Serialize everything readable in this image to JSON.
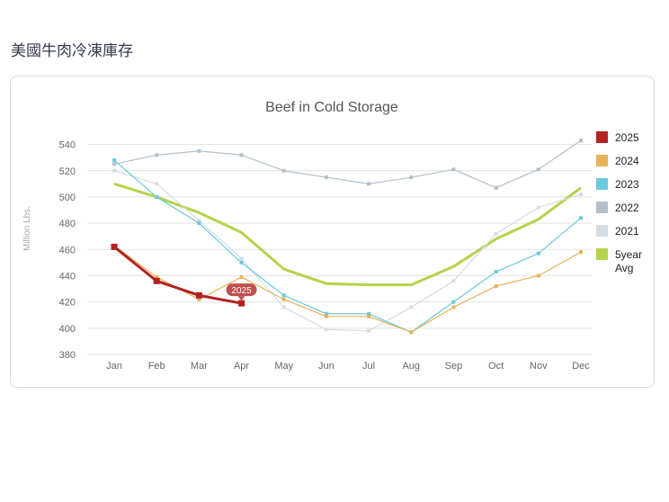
{
  "page": {
    "heading": "美國牛肉冷凍庫存"
  },
  "chart_data": {
    "type": "line",
    "title": "Beef in Cold Storage",
    "ylabel": "Million Lbs.",
    "xlabel": "",
    "ylim": [
      380,
      550
    ],
    "yticks": [
      380,
      400,
      420,
      440,
      460,
      480,
      500,
      520,
      540
    ],
    "categories": [
      "Jan",
      "Feb",
      "Mar",
      "Apr",
      "May",
      "Jun",
      "Jul",
      "Aug",
      "Sep",
      "Oct",
      "Nov",
      "Dec"
    ],
    "grid": true,
    "legend_position": "right",
    "series": [
      {
        "name": "2025",
        "color": "#b22222",
        "values": [
          462,
          436,
          425,
          419,
          null,
          null,
          null,
          null,
          null,
          null,
          null,
          null
        ]
      },
      {
        "name": "2024",
        "color": "#e6b25a",
        "values": [
          463,
          439,
          422,
          439,
          422,
          409,
          409,
          397,
          416,
          432,
          440,
          458
        ]
      },
      {
        "name": "2023",
        "color": "#6cc9dc",
        "values": [
          528,
          500,
          480,
          450,
          425,
          411,
          411,
          397,
          420,
          443,
          457,
          484
        ]
      },
      {
        "name": "2022",
        "color": "#b4c0c9",
        "values": [
          525,
          532,
          535,
          532,
          520,
          515,
          510,
          515,
          521,
          507,
          521,
          543
        ]
      },
      {
        "name": "2021",
        "color": "#d3dde3",
        "values": [
          520,
          510,
          482,
          453,
          416,
          399,
          398,
          416,
          436,
          472,
          492,
          502
        ]
      },
      {
        "name": "5year Avg",
        "color": "#b5d34a",
        "values": [
          510,
          500,
          488,
          473,
          445,
          434,
          433,
          433,
          447,
          468,
          483,
          507
        ]
      }
    ],
    "tooltip": {
      "series": "2025",
      "category": "Apr",
      "label": "2025"
    }
  }
}
